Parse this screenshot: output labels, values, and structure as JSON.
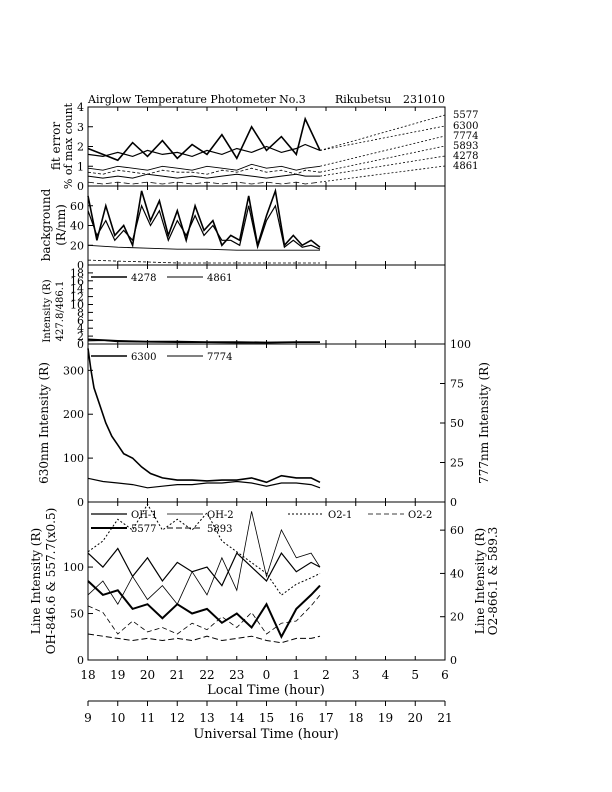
{
  "header": {
    "title": "Airglow Temperature Photometer No.3",
    "station": "Rikubetsu",
    "date": "231010"
  },
  "x_axes": {
    "local_label": "Local Time (hour)",
    "local_ticks": [
      "18",
      "19",
      "20",
      "21",
      "22",
      "23",
      "0",
      "1",
      "2",
      "3",
      "4",
      "5",
      "6"
    ],
    "ut_label": "Universal Time (hour)",
    "ut_ticks": [
      "9",
      "10",
      "11",
      "12",
      "13",
      "14",
      "15",
      "16",
      "17",
      "18",
      "19",
      "20",
      "21"
    ]
  },
  "panels": {
    "p1": {
      "ylabel1": "fit error",
      "ylabel2": "% of max count",
      "yticks": [
        "0",
        "1",
        "2",
        "3",
        "4"
      ],
      "wavelengths": [
        "5577",
        "6300",
        "7774",
        "5893",
        "4278",
        "4861"
      ]
    },
    "p2": {
      "ylabel1": "background",
      "ylabel2": "(R/nm)",
      "yticks": [
        "0",
        "20",
        "40",
        "60"
      ]
    },
    "p3": {
      "ylabel1": "Intensity (R)",
      "ylabel2": "427.8/486.1",
      "yticks": [
        "0",
        "2",
        "4",
        "6",
        "8",
        "10",
        "12",
        "14",
        "16",
        "18"
      ],
      "legend": [
        "4278",
        "4861"
      ]
    },
    "p4": {
      "ylabel_left": "630nm Intensity (R)",
      "ylabel_right": "777nm Intensity (R)",
      "yticks_left": [
        "0",
        "100",
        "200",
        "300"
      ],
      "yticks_right": [
        "0",
        "25",
        "50",
        "75",
        "100"
      ],
      "legend": [
        "6300",
        "7774"
      ]
    },
    "p5": {
      "ylabel_left1": "Line Intensity (R)",
      "ylabel_left2": "OH-846.6 & 557.7(x0.5)",
      "ylabel_right1": "Line Intensity (R)",
      "ylabel_right2": "O2-866.1 & 589.3",
      "yticks_left": [
        "0",
        "50",
        "100"
      ],
      "yticks_right": [
        "0",
        "20",
        "40",
        "60"
      ],
      "legend_row1": [
        "OH-1",
        "OH-2",
        "O2-1",
        "O2-2"
      ],
      "legend_row2": [
        "5577",
        "5893"
      ]
    }
  },
  "chart_data": [
    {
      "type": "line",
      "panel": "p1",
      "title": "Airglow Temperature Photometer No.3  Rikubetsu  231010",
      "xlabel": "Local Time (hour)",
      "ylabel": "fit error % of max count",
      "ylim": [
        0,
        4
      ],
      "x_unit": "hours after 18 LT",
      "series": [
        {
          "name": "5577",
          "x": [
            0,
            0.5,
            1,
            1.5,
            2,
            2.5,
            3,
            3.5,
            4,
            4.5,
            5,
            5.5,
            6,
            6.5,
            7,
            7.3,
            7.8
          ],
          "y": [
            1.9,
            1.6,
            1.3,
            2.2,
            1.5,
            2.3,
            1.4,
            2.1,
            1.6,
            2.6,
            1.4,
            3.0,
            1.8,
            2.5,
            1.6,
            3.4,
            1.8
          ]
        },
        {
          "name": "6300",
          "x": [
            0,
            0.5,
            1,
            1.5,
            2,
            2.5,
            3,
            3.5,
            4,
            4.5,
            5,
            5.5,
            6,
            6.5,
            7,
            7.3,
            7.8
          ],
          "y": [
            1.6,
            1.5,
            1.7,
            1.5,
            1.8,
            1.6,
            1.7,
            1.5,
            1.8,
            1.6,
            1.9,
            1.7,
            2.0,
            1.7,
            1.9,
            2.1,
            1.8
          ]
        },
        {
          "name": "7774",
          "x": [
            0,
            0.5,
            1,
            1.5,
            2,
            2.5,
            3,
            3.5,
            4,
            4.5,
            5,
            5.5,
            6,
            6.5,
            7,
            7.3,
            7.8
          ],
          "y": [
            0.9,
            0.8,
            1.0,
            0.9,
            0.8,
            1.0,
            0.9,
            0.8,
            1.0,
            0.9,
            0.8,
            1.1,
            0.9,
            1.0,
            0.8,
            0.9,
            1.0
          ]
        },
        {
          "name": "5893",
          "x": [
            0,
            0.5,
            1,
            1.5,
            2,
            2.5,
            3,
            3.5,
            4,
            4.5,
            5,
            5.5,
            6,
            6.5,
            7,
            7.3,
            7.8
          ],
          "y": [
            0.7,
            0.6,
            0.8,
            0.7,
            0.6,
            0.8,
            0.7,
            0.7,
            0.6,
            0.8,
            0.7,
            0.9,
            0.7,
            0.8,
            0.6,
            0.8,
            0.7
          ]
        },
        {
          "name": "4278",
          "x": [
            0,
            0.5,
            1,
            1.5,
            2,
            2.5,
            3,
            3.5,
            4,
            4.5,
            5,
            5.5,
            6,
            6.5,
            7,
            7.3,
            7.8
          ],
          "y": [
            0.5,
            0.4,
            0.5,
            0.4,
            0.6,
            0.5,
            0.4,
            0.5,
            0.4,
            0.5,
            0.6,
            0.5,
            0.4,
            0.5,
            0.6,
            0.5,
            0.5
          ]
        },
        {
          "name": "4861",
          "x": [
            0,
            0.5,
            1,
            1.5,
            2,
            2.5,
            3,
            3.5,
            4,
            4.5,
            5,
            5.5,
            6,
            6.5,
            7,
            7.3,
            7.8
          ],
          "y": [
            0.2,
            0.1,
            0.2,
            0.1,
            0.2,
            0.1,
            0.2,
            0.1,
            0.2,
            0.1,
            0.2,
            0.1,
            0.2,
            0.1,
            0.2,
            0.1,
            0.2
          ]
        }
      ]
    },
    {
      "type": "line",
      "panel": "p2",
      "ylabel": "background (R/nm)",
      "ylim": [
        0,
        80
      ],
      "x_unit": "hours after 18 LT",
      "series": [
        {
          "x": [
            0,
            0.3,
            0.6,
            0.9,
            1.2,
            1.5,
            1.8,
            2.1,
            2.4,
            2.7,
            3,
            3.3,
            3.6,
            3.9,
            4.2,
            4.5,
            4.8,
            5.1,
            5.4,
            5.7,
            6,
            6.3,
            6.6,
            6.9,
            7.2,
            7.5,
            7.8
          ],
          "y": [
            70,
            25,
            60,
            30,
            40,
            20,
            75,
            45,
            65,
            30,
            55,
            25,
            60,
            35,
            45,
            20,
            30,
            25,
            70,
            20,
            50,
            75,
            20,
            30,
            20,
            25,
            18
          ]
        },
        {
          "x": [
            0,
            0.3,
            0.6,
            0.9,
            1.2,
            1.5,
            1.8,
            2.1,
            2.4,
            2.7,
            3,
            3.3,
            3.6,
            3.9,
            4.2,
            4.5,
            4.8,
            5.1,
            5.4,
            5.7,
            6,
            6.3,
            6.6,
            6.9,
            7.2,
            7.5,
            7.8
          ],
          "y": [
            55,
            30,
            45,
            25,
            35,
            25,
            60,
            40,
            55,
            25,
            45,
            30,
            50,
            30,
            40,
            25,
            25,
            20,
            60,
            18,
            45,
            60,
            18,
            25,
            18,
            20,
            16
          ]
        },
        {
          "x": [
            0,
            1,
            2,
            3,
            4,
            5,
            6,
            7,
            7.8
          ],
          "y": [
            20,
            18,
            17,
            16,
            16,
            15,
            15,
            15,
            15
          ]
        },
        {
          "x": [
            0,
            1,
            2,
            3,
            4,
            5,
            6,
            7,
            7.8
          ],
          "y": [
            5,
            4,
            3,
            2,
            2,
            2,
            2,
            2,
            2
          ]
        }
      ]
    },
    {
      "type": "line",
      "panel": "p3",
      "ylabel": "Intensity (R) 427.8/486.1",
      "ylim": [
        0,
        20
      ],
      "x_unit": "hours after 18 LT",
      "series": [
        {
          "name": "4278",
          "x": [
            0,
            0.5,
            1,
            2,
            3,
            4,
            5,
            6,
            7,
            7.8
          ],
          "y": [
            1.2,
            1.0,
            0.8,
            0.6,
            0.6,
            0.5,
            0.5,
            0.4,
            0.5,
            0.5
          ]
        },
        {
          "name": "4861",
          "x": [
            0,
            0.5,
            1,
            2,
            3,
            4,
            5,
            6,
            7,
            7.8
          ],
          "y": [
            0.8,
            0.9,
            0.6,
            0.5,
            0.4,
            0.4,
            0.3,
            0.3,
            0.4,
            0.4
          ]
        }
      ]
    },
    {
      "type": "line",
      "panel": "p4",
      "ylabel": "630nm Intensity (R)",
      "ylabel_right": "777nm Intensity (R)",
      "ylim": [
        0,
        360
      ],
      "ylim_right": [
        0,
        100
      ],
      "x_unit": "hours after 18 LT",
      "series": [
        {
          "name": "6300",
          "axis": "left",
          "x": [
            0,
            0.1,
            0.2,
            0.4,
            0.6,
            0.8,
            1.0,
            1.2,
            1.5,
            1.8,
            2.1,
            2.5,
            3,
            3.5,
            4,
            4.5,
            5,
            5.5,
            6,
            6.5,
            7,
            7.5,
            7.8
          ],
          "y": [
            350,
            300,
            260,
            220,
            180,
            150,
            130,
            110,
            100,
            80,
            65,
            55,
            50,
            50,
            48,
            50,
            50,
            55,
            45,
            60,
            55,
            55,
            45
          ]
        },
        {
          "name": "7774",
          "axis": "right",
          "x": [
            0,
            0.5,
            1,
            1.5,
            2,
            2.5,
            3,
            3.5,
            4,
            4.5,
            5,
            5.5,
            6,
            6.5,
            7,
            7.5,
            7.8
          ],
          "y": [
            15,
            13,
            12,
            11,
            9,
            10,
            11,
            11,
            12,
            12,
            13,
            12,
            10,
            12,
            12,
            11,
            9
          ]
        }
      ]
    },
    {
      "type": "line",
      "panel": "p5",
      "ylabel": "Line Intensity (R) OH-846.6 & 557.7(x0.5)",
      "ylabel_right": "Line Intensity (R) O2-866.1 & 589.3",
      "ylim": [
        0,
        170
      ],
      "ylim_right": [
        0,
        73
      ],
      "x_unit": "hours after 18 LT",
      "series": [
        {
          "name": "OH-1",
          "axis": "left",
          "x": [
            0,
            0.5,
            1,
            1.5,
            2,
            2.5,
            3,
            3.5,
            4,
            4.5,
            5,
            5.5,
            6,
            6.5,
            7,
            7.5,
            7.8
          ],
          "y": [
            115,
            100,
            120,
            90,
            110,
            85,
            105,
            95,
            100,
            80,
            115,
            100,
            85,
            115,
            95,
            105,
            100
          ]
        },
        {
          "name": "OH-2",
          "axis": "left",
          "x": [
            0,
            0.5,
            1,
            1.5,
            2,
            2.5,
            3,
            3.5,
            4,
            4.5,
            5,
            5.5,
            6,
            6.5,
            7,
            7.5,
            7.8
          ],
          "y": [
            70,
            85,
            60,
            90,
            65,
            80,
            60,
            95,
            70,
            110,
            75,
            160,
            90,
            140,
            110,
            115,
            100
          ]
        },
        {
          "name": "O2-1",
          "axis": "right",
          "x": [
            0,
            0.5,
            1,
            1.5,
            2,
            2.5,
            3,
            3.5,
            4,
            4.5,
            5,
            5.5,
            6,
            6.5,
            7,
            7.5,
            7.8
          ],
          "y": [
            50,
            55,
            65,
            60,
            72,
            60,
            65,
            60,
            68,
            55,
            50,
            45,
            40,
            30,
            35,
            38,
            40
          ]
        },
        {
          "name": "O2-2",
          "axis": "right",
          "x": [
            0,
            0.5,
            1,
            1.5,
            2,
            2.5,
            3,
            3.5,
            4,
            4.5,
            5,
            5.5,
            6,
            6.5,
            7,
            7.5,
            7.8
          ],
          "y": [
            25,
            22,
            12,
            18,
            13,
            15,
            12,
            17,
            14,
            20,
            15,
            22,
            12,
            17,
            18,
            25,
            30
          ]
        },
        {
          "name": "5577",
          "axis": "left",
          "x": [
            0,
            0.5,
            1,
            1.5,
            2,
            2.5,
            3,
            3.5,
            4,
            4.5,
            5,
            5.5,
            6,
            6.5,
            7,
            7.5,
            7.8
          ],
          "y": [
            85,
            70,
            75,
            55,
            60,
            45,
            60,
            50,
            55,
            40,
            50,
            35,
            60,
            25,
            55,
            70,
            80
          ]
        },
        {
          "name": "5893",
          "axis": "right",
          "x": [
            0,
            0.5,
            1,
            1.5,
            2,
            2.5,
            3,
            3.5,
            4,
            4.5,
            5,
            5.5,
            6,
            6.5,
            7,
            7.5,
            7.8
          ],
          "y": [
            12,
            11,
            10,
            9,
            10,
            9,
            10,
            9,
            11,
            9,
            10,
            11,
            9,
            8,
            10,
            10,
            11
          ]
        }
      ]
    }
  ]
}
